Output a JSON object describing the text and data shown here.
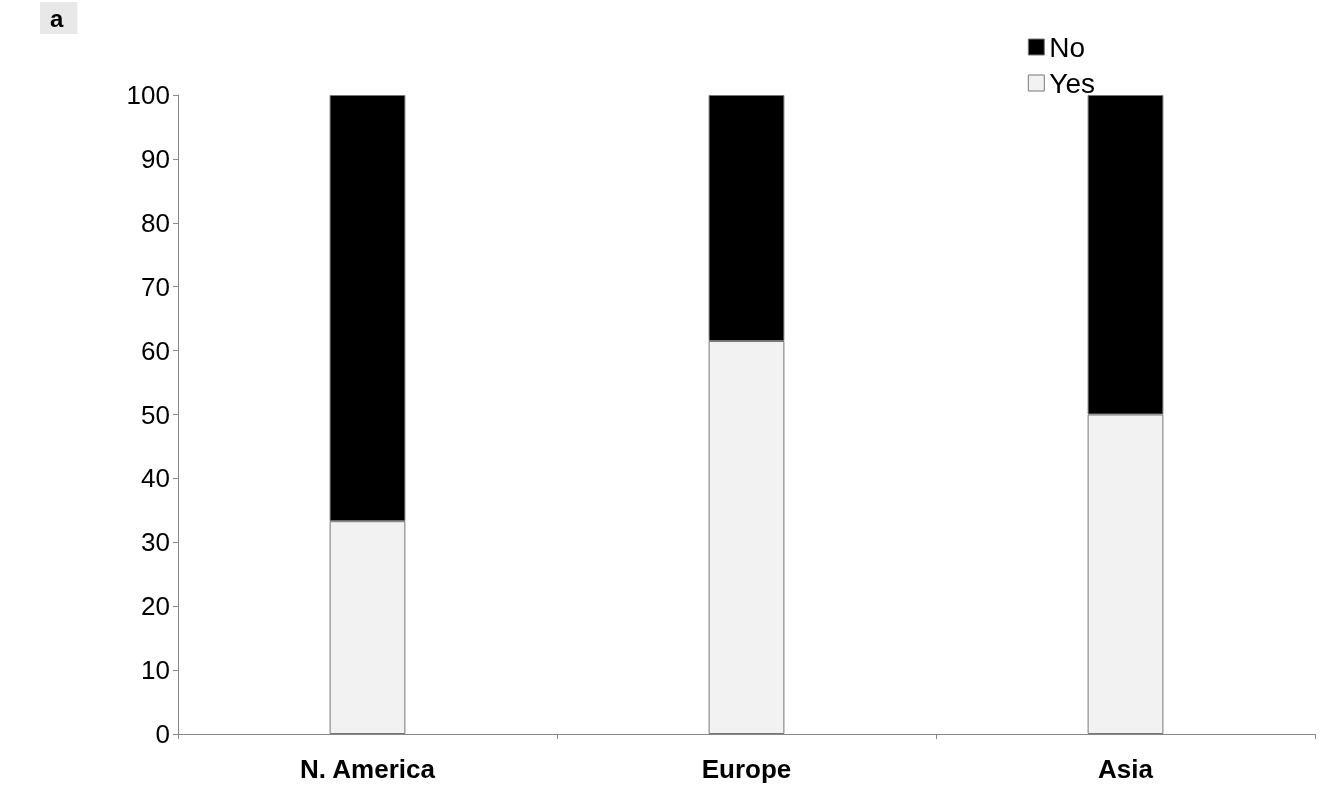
{
  "chart_data": {
    "type": "bar",
    "title": "a",
    "stacked": true,
    "categories": [
      "N. America",
      "Europe",
      "Asia"
    ],
    "series": [
      {
        "name": "Yes",
        "color": "#f2f2f2",
        "values": [
          33.3,
          61.5,
          50
        ]
      },
      {
        "name": "No",
        "color": "#000000",
        "values": [
          66.7,
          38.5,
          50
        ]
      }
    ],
    "ylim": [
      0,
      100
    ],
    "yticks": [
      0,
      10,
      20,
      30,
      40,
      50,
      60,
      70,
      80,
      90,
      100
    ],
    "grid": false,
    "legend": "top right"
  }
}
